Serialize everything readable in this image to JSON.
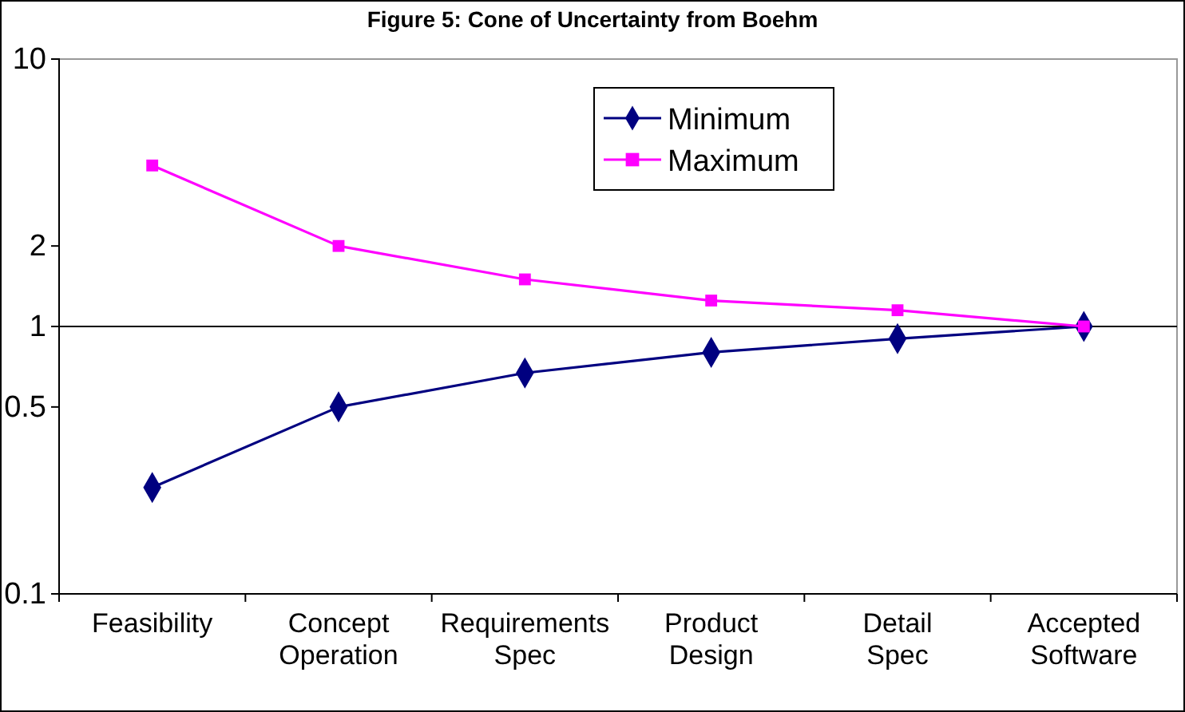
{
  "chart_data": {
    "type": "line",
    "title": "Figure 5: Cone of Uncertainty from Boehm",
    "categories": [
      "Feasibility",
      "Concept\nOperation",
      "Requirements\nSpec",
      "Product\nDesign",
      "Detail\nSpec",
      "Accepted\nSoftware"
    ],
    "series": [
      {
        "name": "Minimum",
        "color": "#000080",
        "marker": "diamond",
        "values": [
          0.25,
          0.5,
          0.67,
          0.8,
          0.9,
          1
        ]
      },
      {
        "name": "Maximum",
        "color": "#ff00ff",
        "marker": "square",
        "values": [
          4,
          2,
          1.5,
          1.25,
          1.15,
          1
        ]
      }
    ],
    "log": true,
    "ylim": [
      0.1,
      10
    ],
    "yticks": [
      0.1,
      0.5,
      1,
      2,
      10
    ],
    "ref_lines": [
      {
        "axis": "y",
        "value": 1,
        "color": "#000000"
      }
    ],
    "grid": false,
    "legend": "top right",
    "line_style": "solid"
  }
}
